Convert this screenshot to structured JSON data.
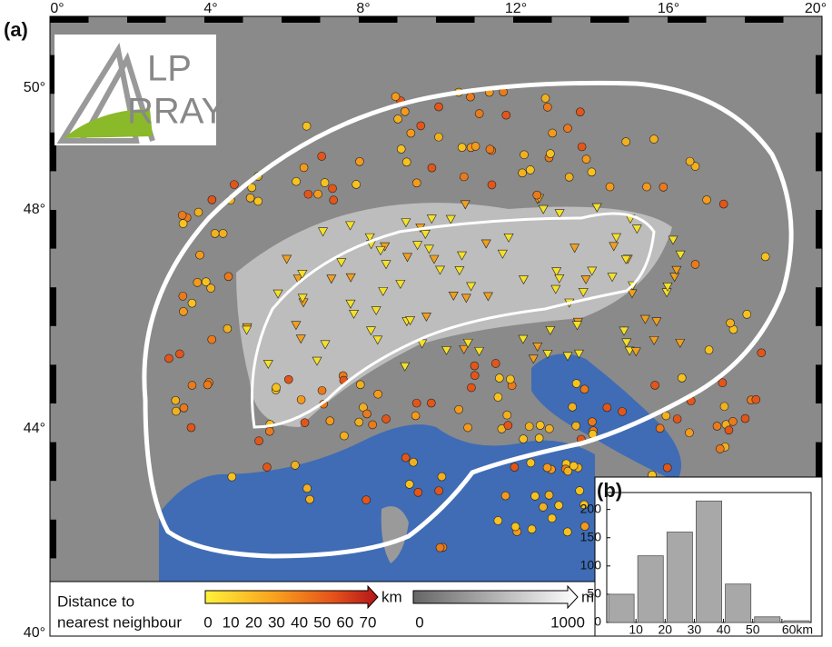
{
  "panel_a": "(a)",
  "panel_b": "(b)",
  "map": {
    "lon_labels": [
      "0°",
      "4°",
      "8°",
      "12°",
      "16°",
      "20°"
    ],
    "lat_labels": [
      "50°",
      "48°",
      "44°",
      "40°"
    ],
    "logo": {
      "line1": "LP",
      "line2": "RRAY"
    }
  },
  "legend": {
    "title": [
      "Distance to",
      "nearest neighbour"
    ],
    "distance_ticks": [
      0,
      10,
      20,
      30,
      40,
      50,
      60,
      70
    ],
    "distance_unit": "km",
    "elevation_ticks": [
      0,
      1000
    ],
    "elevation_unit": "m"
  },
  "chart_data": {
    "type": "histogram",
    "bins": [
      0,
      10,
      20,
      30,
      40,
      50,
      60,
      70
    ],
    "values": [
      50,
      118,
      160,
      215,
      68,
      10,
      3
    ],
    "color": "#a8a8a8",
    "xlim": [
      0,
      70
    ],
    "xticks": [
      10,
      20,
      30,
      40,
      50,
      {
        "value": 60,
        "label": "60km"
      }
    ],
    "ylim": [
      0,
      230
    ],
    "yticks": [
      0,
      50,
      100,
      150,
      200
    ]
  }
}
